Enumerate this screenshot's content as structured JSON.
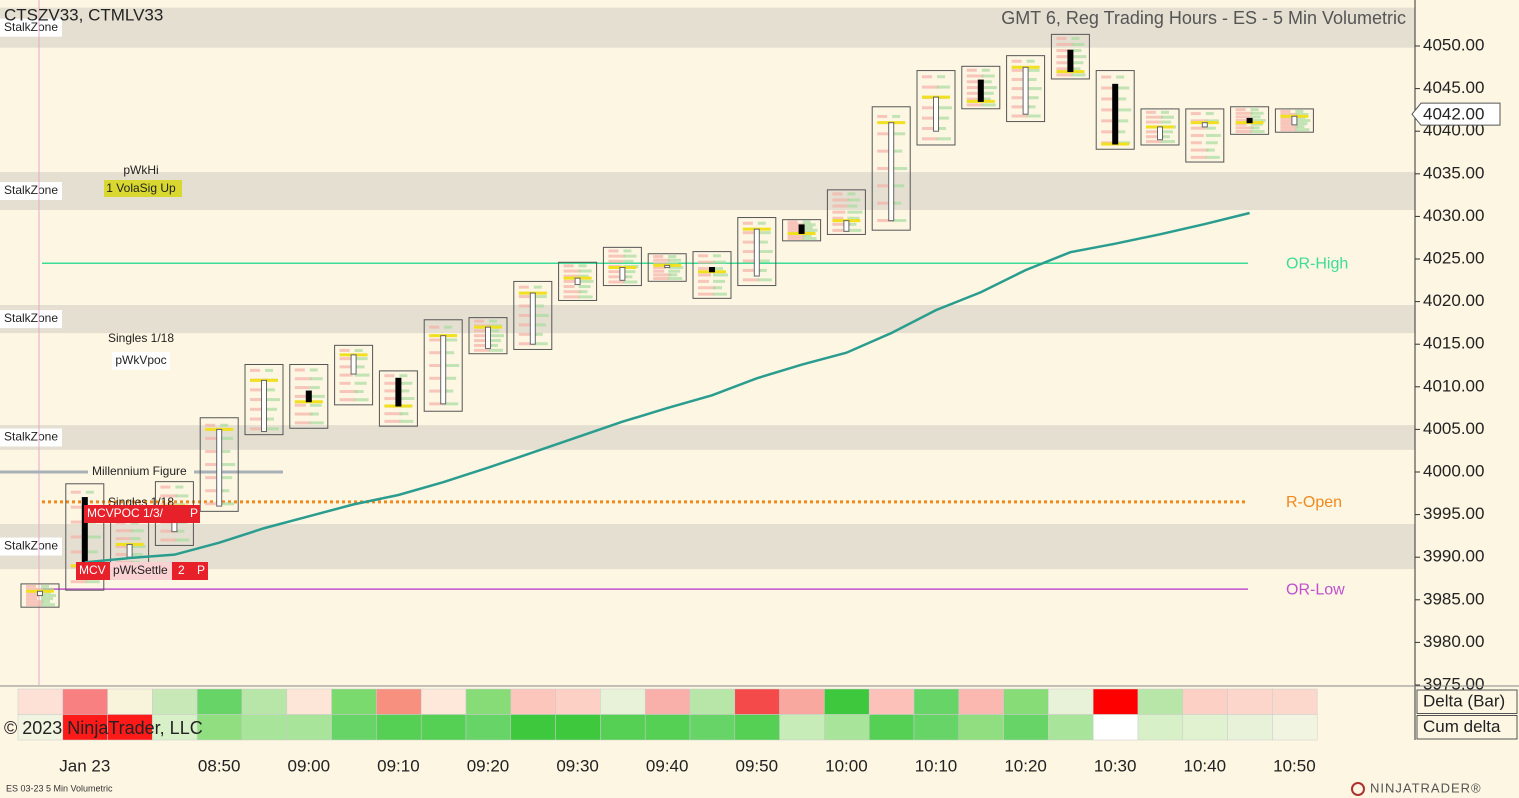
{
  "header": {
    "title": "CTSZV33, CTMLV33",
    "subtitle": "GMT 6, Reg Trading Hours - ES - 5 Min Volumetric"
  },
  "chart_data": {
    "type": "candlestick",
    "categories": [
      null,
      "Jan 23",
      null,
      null,
      "08:50",
      null,
      "09:00",
      null,
      "09:10",
      null,
      "09:20",
      null,
      "09:30",
      null,
      "09:40",
      null,
      "09:50",
      null,
      "10:00",
      null,
      "10:10",
      null,
      "10:20",
      null,
      "10:30",
      null,
      "10:40",
      null,
      "10:50"
    ],
    "open": [
      3985.5,
      3997,
      3990,
      3993,
      3996,
      4004.75,
      4009.5,
      4011.5,
      4011,
      4008,
      4014.5,
      4015,
      4022,
      4022.5,
      4024,
      4024,
      4023,
      4029,
      4028.25,
      4029.5,
      4040,
      4046,
      4042,
      4049.5,
      4045.5,
      4039,
      4040.5,
      4041.5,
      4040.75
    ],
    "high": [
      3986.75,
      3998.5,
      3994.5,
      3998.75,
      4006.25,
      4012.5,
      4012.5,
      4014.75,
      4011.75,
      4017.75,
      4018,
      4022.25,
      4024.5,
      4026.25,
      4025.5,
      4025.75,
      4029.75,
      4029.5,
      4033,
      4042.75,
      4047,
      4047.5,
      4048.75,
      4051.25,
      4047,
      4042.5,
      4042.5,
      4042.75,
      4042.5
    ],
    "low": [
      3984.25,
      3986.25,
      3988,
      3991.5,
      3995.5,
      4004.5,
      4005.25,
      4008,
      4005.5,
      4007.25,
      4014,
      4014.5,
      4020.25,
      4022,
      4022.5,
      4020.5,
      4022,
      4027.25,
      4028,
      4028.5,
      4038.5,
      4042.75,
      4041.25,
      4046.25,
      4038,
      4038.5,
      4036.5,
      4039.75,
      4040
    ],
    "close": [
      3986,
      3989,
      3991.5,
      3996,
      4005,
      4010.75,
      4008.25,
      4013.75,
      4007.75,
      4016,
      4017,
      4021,
      4022.75,
      4024,
      4024.25,
      4023.5,
      4028.5,
      4028,
      4029.5,
      4041,
      4044,
      4043.5,
      4047.5,
      4047,
      4038.5,
      4040.5,
      4041,
      4041,
      4041.75
    ],
    "ylim": [
      3975,
      4055.4
    ],
    "yticks": [
      {
        "value": 3975,
        "label": "3975.00"
      },
      {
        "value": 3980,
        "label": "3980.00"
      },
      {
        "value": 3985,
        "label": "3985.00"
      },
      {
        "value": 3990,
        "label": "3990.00"
      },
      {
        "value": 3995,
        "label": "3995.00"
      },
      {
        "value": 4000,
        "label": "4000.00"
      },
      {
        "value": 4005,
        "label": "4005.00"
      },
      {
        "value": 4010,
        "label": "4010.00"
      },
      {
        "value": 4015,
        "label": "4015.00"
      },
      {
        "value": 4020,
        "label": "4020.00"
      },
      {
        "value": 4025,
        "label": "4025.00"
      },
      {
        "value": 4030,
        "label": "4030.00"
      },
      {
        "value": 4035,
        "label": "4035.00"
      },
      {
        "value": 4040,
        "label": "4040.00"
      },
      {
        "value": 4045,
        "label": "4045.00"
      },
      {
        "value": 4050,
        "label": "4050.00"
      }
    ],
    "cum_delta": {
      "color": "#2a9d8f",
      "values": [
        null,
        3989.4,
        3989.9,
        3990.3,
        3991.7,
        3993.4,
        3994.8,
        3996.2,
        3997.3,
        3998.8,
        4000.5,
        4002.3,
        4004.1,
        4005.9,
        4007.5,
        4009,
        4011,
        4012.6,
        4014,
        4016.3,
        4019,
        4021.1,
        4023.7,
        4025.8,
        4026.8,
        4027.9,
        4029.1,
        4030.4,
        null
      ]
    },
    "levels": [
      {
        "name": "OR-High",
        "value": 4024.5,
        "color": "#3ddc97",
        "dotted": false
      },
      {
        "name": "R-Open",
        "value": 3996.5,
        "color": "#f08a1c",
        "dotted": true
      },
      {
        "name": "OR-Low",
        "value": 3986.25,
        "color": "#c050d0",
        "dotted": false
      },
      {
        "name": "Millennium Figure",
        "value": 4000,
        "color": "#a8b0b8",
        "dotted": false
      }
    ],
    "zones": [
      {
        "label": "StalkZone",
        "top": 4054.5,
        "bottom": 4049.8
      },
      {
        "label": "StalkZone",
        "top": 4035.2,
        "bottom": 4030.75
      },
      {
        "label": "StalkZone",
        "top": 4019.6,
        "bottom": 4016.3
      },
      {
        "label": "StalkZone",
        "top": 4005.5,
        "bottom": 4002.6
      },
      {
        "label": "StalkZone",
        "top": 3993.9,
        "bottom": 3988.6
      }
    ],
    "last_price": {
      "value": 4042,
      "label": "4042.00"
    }
  },
  "annotations": [
    "pWkHi",
    "1 VolaSig Up",
    "Singles 1/18",
    "pWkVpoc",
    "Singles 1/18",
    "MCVPOC 1/3/",
    "P",
    "MCV",
    "pWkSettle",
    "2",
    "P"
  ],
  "delta_panel": [
    {
      "name": "Delta (Bar)",
      "colors": [
        "#fde0d6",
        "#f88080",
        "#f8f4dc",
        "#c8e8b8",
        "#66d466",
        "#b8e6a8",
        "#fde6d8",
        "#7ada6e",
        "#f89080",
        "#fde8da",
        "#88dc78",
        "#fcc6bc",
        "#fcd0c4",
        "#e8f2d8",
        "#fab0aa",
        "#b8e6a8",
        "#f54a4a",
        "#f9a8a0",
        "#3ec83e",
        "#fcc2ba",
        "#66d466",
        "#fab8b0",
        "#88dc78",
        "#e8f2d8",
        "#ff0000",
        "#b8e6a8",
        "#fcd0c4",
        "#fcd6ca",
        "#fcd8cc"
      ]
    },
    {
      "name": "Cum delta",
      "colors": [
        "#f0f4e0",
        "#ff1a1a",
        "#ff1a1a",
        "#d8f0c8",
        "#90de80",
        "#a8e49a",
        "#a8e49a",
        "#66d466",
        "#55d055",
        "#55d055",
        "#66d466",
        "#3ec83e",
        "#3ec83e",
        "#55d055",
        "#55d055",
        "#66d466",
        "#55d055",
        "#c8ecb8",
        "#a8e49a",
        "#55d055",
        "#66d466",
        "#90de80",
        "#66d466",
        "#a8e49a",
        "#ffffff",
        "#d8f0c8",
        "#e0f2d0",
        "#e8f2d8",
        "#f0f4e0"
      ]
    }
  ],
  "footer": {
    "copyright": "© 2023 NinjaTrader, LLC",
    "instrument": "ES 03-23 5 Min Volumetric",
    "logo": "NINJATRADER®"
  }
}
